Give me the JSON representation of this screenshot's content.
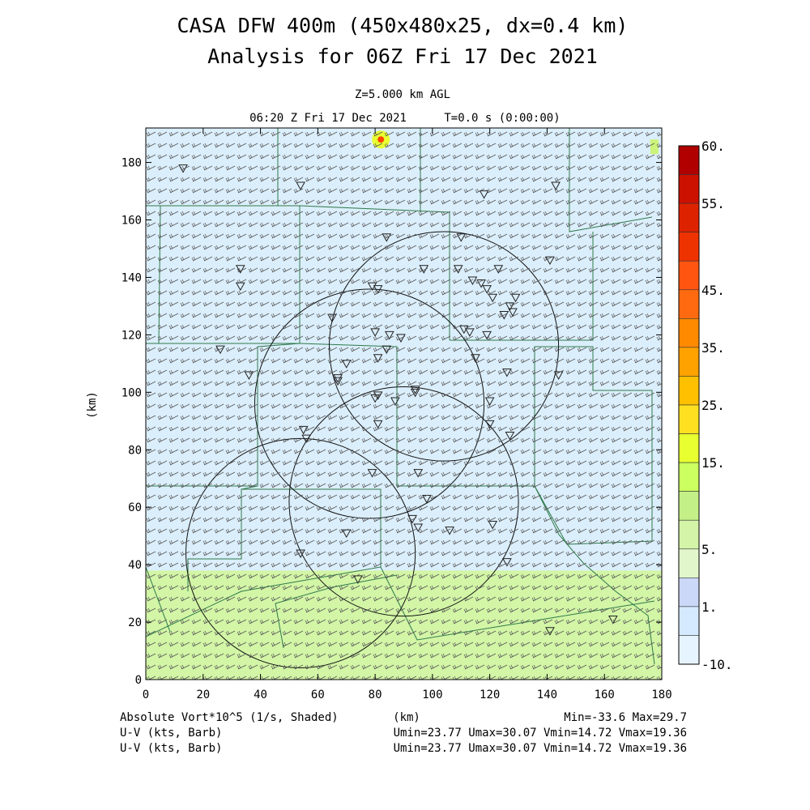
{
  "header": {
    "title_line1": "CASA DFW 400m (450x480x25, dx=0.4 km)",
    "title_line2": "Analysis for 06Z Fri 17 Dec 2021",
    "level": "Z=5.000 km AGL",
    "valid_time": "06:20 Z Fri 17 Dec 2021",
    "forecast_time": "T=0.0 s (0:00:00)"
  },
  "footer": {
    "field_label": "Absolute Vort*10^5 (1/s, Shaded)",
    "x_unit": "(km)",
    "min_max": "Min=-33.6 Max=29.7",
    "vector_label_1": "U-V (kts, Barb)",
    "vector_stats_1": "Umin=23.77 Umax=30.07 Vmin=14.72 Vmax=19.36",
    "vector_label_2": "U-V (kts, Barb)",
    "vector_stats_2": "Umin=23.77 Umax=30.07 Vmin=14.72 Vmax=19.36"
  },
  "chart_data": {
    "type": "heatmap",
    "xlabel": "",
    "ylabel": "(km)",
    "xlim": [
      0,
      180
    ],
    "ylim": [
      0,
      192
    ],
    "x_ticks": [
      "0",
      "20",
      "40",
      "60",
      "80",
      "100",
      "120",
      "140",
      "160",
      "180"
    ],
    "y_ticks": [
      "0",
      "20",
      "40",
      "60",
      "80",
      "100",
      "120",
      "140",
      "160",
      "180"
    ],
    "colorbar": {
      "labels": [
        "60.",
        "55.",
        "45.",
        "35.",
        "25.",
        "15.",
        "5.",
        "1.",
        "-10."
      ],
      "colors": [
        "#b00000",
        "#cc1100",
        "#dd2200",
        "#ee3300",
        "#ff5511",
        "#ff6a10",
        "#ff8a00",
        "#ffa200",
        "#ffc000",
        "#ffe020",
        "#e8ff30",
        "#ccff60",
        "#c4f088",
        "#d4f4a8",
        "#e2f6cc",
        "#ccd8f8",
        "#d6eaff",
        "#e6f4ff"
      ]
    },
    "regions": [
      {
        "name": "south-positive-band",
        "x": [
          0,
          180
        ],
        "y": [
          0,
          38
        ],
        "color": "#d2f5a6"
      },
      {
        "name": "north-background",
        "x": [
          0,
          180
        ],
        "y": [
          38,
          192
        ],
        "color": "#dbeefb"
      }
    ],
    "radar_rings": [
      {
        "cx": 104,
        "cy": 116,
        "r": 40
      },
      {
        "cx": 78,
        "cy": 96,
        "r": 40
      },
      {
        "cx": 90,
        "cy": 62,
        "r": 40
      },
      {
        "cx": 54,
        "cy": 44,
        "r": 40
      }
    ],
    "hotspot": {
      "x": 82,
      "y": 188,
      "color": "#ff4400"
    },
    "stations": [
      [
        13,
        178
      ],
      [
        54,
        172
      ],
      [
        118,
        169
      ],
      [
        143,
        172
      ],
      [
        84,
        154
      ],
      [
        110,
        154
      ],
      [
        33,
        143
      ],
      [
        33,
        137
      ],
      [
        97,
        143
      ],
      [
        109,
        143
      ],
      [
        123,
        143
      ],
      [
        141,
        146
      ],
      [
        79,
        137
      ],
      [
        81,
        136
      ],
      [
        114,
        139
      ],
      [
        117,
        138
      ],
      [
        119,
        136
      ],
      [
        121,
        133
      ],
      [
        129,
        133
      ],
      [
        127,
        130
      ],
      [
        128,
        128
      ],
      [
        125,
        127
      ],
      [
        65,
        126
      ],
      [
        80,
        121
      ],
      [
        85,
        120
      ],
      [
        89,
        119
      ],
      [
        111,
        122
      ],
      [
        113,
        121
      ],
      [
        119,
        120
      ],
      [
        84,
        115
      ],
      [
        81,
        112
      ],
      [
        26,
        115
      ],
      [
        115,
        112
      ],
      [
        70,
        110
      ],
      [
        67,
        105
      ],
      [
        36,
        106
      ],
      [
        67,
        104
      ],
      [
        126,
        107
      ],
      [
        144,
        106
      ],
      [
        94,
        101
      ],
      [
        94,
        100
      ],
      [
        81,
        99
      ],
      [
        80,
        98
      ],
      [
        87,
        97
      ],
      [
        120,
        97
      ],
      [
        120,
        89
      ],
      [
        81,
        89
      ],
      [
        127,
        85
      ],
      [
        55,
        87
      ],
      [
        56,
        84
      ],
      [
        79,
        72
      ],
      [
        95,
        72
      ],
      [
        98,
        63
      ],
      [
        93,
        56
      ],
      [
        95,
        53
      ],
      [
        121,
        54
      ],
      [
        70,
        51
      ],
      [
        106,
        52
      ],
      [
        54,
        44
      ],
      [
        126,
        41
      ],
      [
        74,
        35
      ],
      [
        141,
        17
      ],
      [
        163,
        21
      ]
    ],
    "wind_barbs": {
      "u_kts": [
        23.77,
        30.07
      ],
      "v_kts": [
        14.72,
        19.36
      ]
    }
  }
}
